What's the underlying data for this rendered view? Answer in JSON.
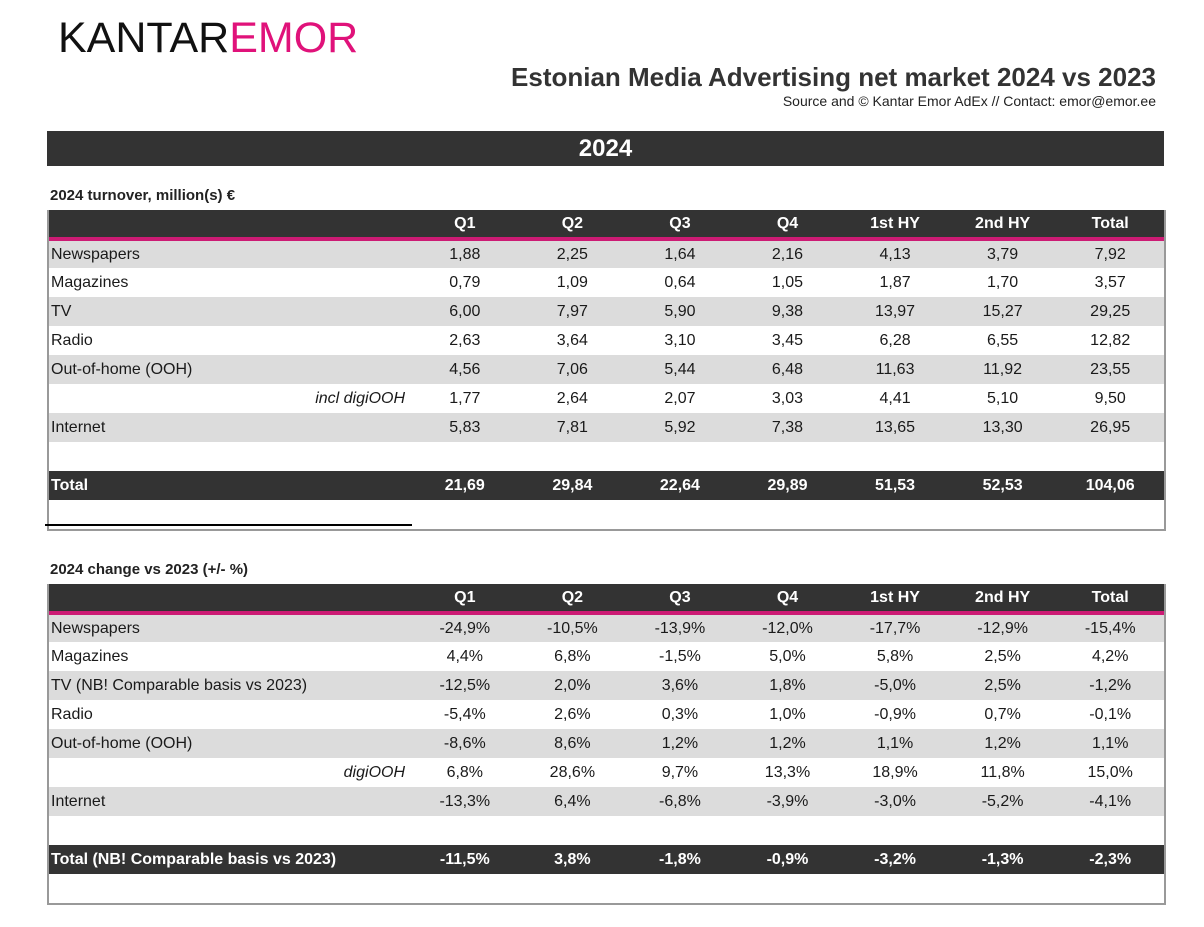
{
  "logo": {
    "brand_dark": "KANTAR",
    "brand_pink": "EMOR"
  },
  "header": {
    "title": "Estonian Media Advertising net market 2024 vs 2023",
    "source": "Source and © Kantar Emor AdEx // Contact: emor@emor.ee"
  },
  "year_banner": "2024",
  "colors": {
    "accent_pink": "#e0127a",
    "dark_band": "#333333",
    "stripe": "#dcdcdc"
  },
  "turnover": {
    "label": "2024 turnover, million(s) €",
    "columns": [
      "",
      "Q1",
      "Q2",
      "Q3",
      "Q4",
      "1st HY",
      "2nd HY",
      "Total"
    ],
    "rows": [
      {
        "label": "Newspapers",
        "values": [
          "1,88",
          "2,25",
          "1,64",
          "2,16",
          "4,13",
          "3,79",
          "7,92"
        ]
      },
      {
        "label": "Magazines",
        "values": [
          "0,79",
          "1,09",
          "0,64",
          "1,05",
          "1,87",
          "1,70",
          "3,57"
        ]
      },
      {
        "label": "TV",
        "values": [
          "6,00",
          "7,97",
          "5,90",
          "9,38",
          "13,97",
          "15,27",
          "29,25"
        ]
      },
      {
        "label": "Radio",
        "values": [
          "2,63",
          "3,64",
          "3,10",
          "3,45",
          "6,28",
          "6,55",
          "12,82"
        ]
      },
      {
        "label": "Out-of-home (OOH)",
        "values": [
          "4,56",
          "7,06",
          "5,44",
          "6,48",
          "11,63",
          "11,92",
          "23,55"
        ]
      },
      {
        "label": "incl digiOOH",
        "sub": true,
        "values": [
          "1,77",
          "2,64",
          "2,07",
          "3,03",
          "4,41",
          "5,10",
          "9,50"
        ]
      },
      {
        "label": "Internet",
        "values": [
          "5,83",
          "7,81",
          "5,92",
          "7,38",
          "13,65",
          "13,30",
          "26,95"
        ]
      }
    ],
    "total": {
      "label": "Total",
      "values": [
        "21,69",
        "29,84",
        "22,64",
        "29,89",
        "51,53",
        "52,53",
        "104,06"
      ]
    }
  },
  "change": {
    "label": "2024 change vs 2023 (+/- %)",
    "columns": [
      "",
      "Q1",
      "Q2",
      "Q3",
      "Q4",
      "1st HY",
      "2nd HY",
      "Total"
    ],
    "rows": [
      {
        "label": "Newspapers",
        "values": [
          "-24,9%",
          "-10,5%",
          "-13,9%",
          "-12,0%",
          "-17,7%",
          "-12,9%",
          "-15,4%"
        ]
      },
      {
        "label": "Magazines",
        "values": [
          "4,4%",
          "6,8%",
          "-1,5%",
          "5,0%",
          "5,8%",
          "2,5%",
          "4,2%"
        ]
      },
      {
        "label": "TV (NB! Comparable basis vs 2023)",
        "values": [
          "-12,5%",
          "2,0%",
          "3,6%",
          "1,8%",
          "-5,0%",
          "2,5%",
          "-1,2%"
        ]
      },
      {
        "label": "Radio",
        "values": [
          "-5,4%",
          "2,6%",
          "0,3%",
          "1,0%",
          "-0,9%",
          "0,7%",
          "-0,1%"
        ]
      },
      {
        "label": "Out-of-home (OOH)",
        "values": [
          "-8,6%",
          "8,6%",
          "1,2%",
          "1,2%",
          "1,1%",
          "1,2%",
          "1,1%"
        ]
      },
      {
        "label": "digiOOH",
        "sub": true,
        "values": [
          "6,8%",
          "28,6%",
          "9,7%",
          "13,3%",
          "18,9%",
          "11,8%",
          "15,0%"
        ]
      },
      {
        "label": "Internet",
        "values": [
          "-13,3%",
          "6,4%",
          "-6,8%",
          "-3,9%",
          "-3,0%",
          "-5,2%",
          "-4,1%"
        ]
      }
    ],
    "total": {
      "label": "Total (NB! Comparable basis vs 2023)",
      "values": [
        "-11,5%",
        "3,8%",
        "-1,8%",
        "-0,9%",
        "-3,2%",
        "-1,3%",
        "-2,3%"
      ]
    }
  }
}
